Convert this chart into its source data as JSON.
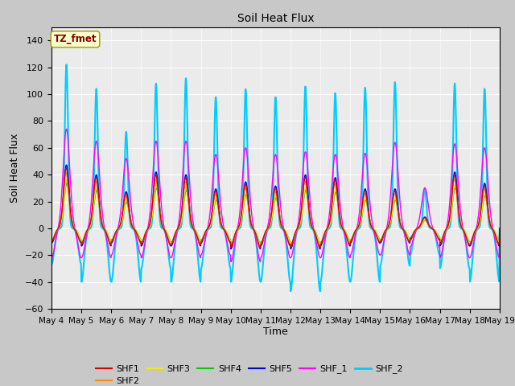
{
  "title": "Soil Heat Flux",
  "ylabel": "Soil Heat Flux",
  "xlabel": "Time",
  "ylim": [
    -60,
    150
  ],
  "yticks": [
    -60,
    -40,
    -20,
    0,
    20,
    40,
    60,
    80,
    100,
    120,
    140
  ],
  "xtick_labels": [
    "May 4",
    "May 5",
    "May 6",
    "May 7",
    "May 8",
    "May 9",
    "May 10",
    "May 11",
    "May 12",
    "May 13",
    "May 14",
    "May 15",
    "May 16",
    "May 17",
    "May 18",
    "May 19"
  ],
  "series": {
    "SHF1": {
      "color": "#dd0000",
      "lw": 1.0
    },
    "SHF2": {
      "color": "#ff8800",
      "lw": 1.0
    },
    "SHF3": {
      "color": "#eeee00",
      "lw": 1.0
    },
    "SHF4": {
      "color": "#00cc00",
      "lw": 1.0
    },
    "SHF5": {
      "color": "#0000dd",
      "lw": 1.0
    },
    "SHF_1": {
      "color": "#ff00ff",
      "lw": 1.0
    },
    "SHF_2": {
      "color": "#00ccff",
      "lw": 1.5
    }
  },
  "annotation_text": "TZ_fmet",
  "annotation_color": "#880000",
  "annotation_bg": "#ffffcc",
  "annotation_border": "#999900",
  "bg_color": "#ebebeb",
  "fig_color": "#c8c8c8"
}
